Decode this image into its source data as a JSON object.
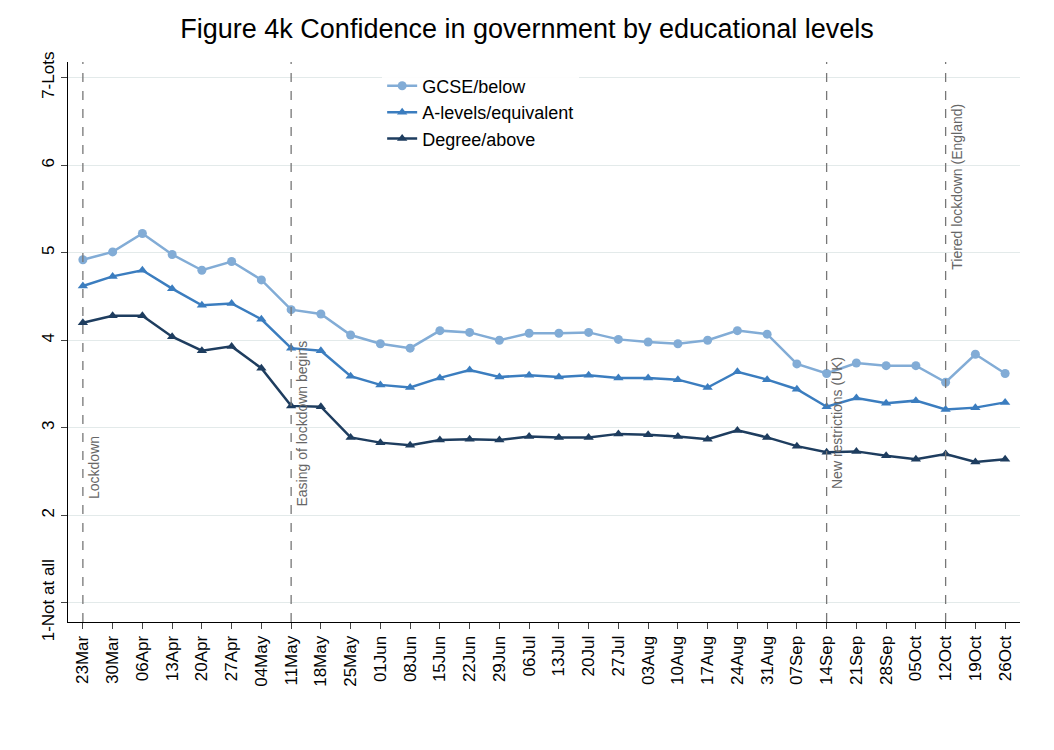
{
  "chart_data": {
    "type": "line",
    "title": "Figure 4k Confidence in government by educational levels",
    "categories": [
      "23Mar",
      "30Mar",
      "06Apr",
      "13Apr",
      "20Apr",
      "27Apr",
      "04May",
      "11May",
      "18May",
      "25May",
      "01Jun",
      "08Jun",
      "15Jun",
      "22Jun",
      "29Jun",
      "06Jul",
      "13Jul",
      "20Jul",
      "27Jul",
      "03Aug",
      "10Aug",
      "17Aug",
      "24Aug",
      "31Aug",
      "07Sep",
      "14Sep",
      "21Sep",
      "28Sep",
      "05Oct",
      "12Oct",
      "19Oct",
      "26Oct"
    ],
    "series": [
      {
        "name": "GCSE/below",
        "color": "#82acd6",
        "marker": "circle",
        "values": [
          4.92,
          5.01,
          5.22,
          4.98,
          4.8,
          4.9,
          4.69,
          4.35,
          4.3,
          4.06,
          3.96,
          3.91,
          4.11,
          4.09,
          4.0,
          4.08,
          4.08,
          4.09,
          4.01,
          3.98,
          3.96,
          4.0,
          4.11,
          4.07,
          3.73,
          3.62,
          3.74,
          3.71,
          3.71,
          3.52,
          3.84,
          3.62
        ]
      },
      {
        "name": "A-levels/equivalent",
        "color": "#3b7dbf",
        "marker": "triangle-up",
        "values": [
          4.62,
          4.73,
          4.8,
          4.59,
          4.4,
          4.42,
          4.24,
          3.91,
          3.88,
          3.59,
          3.49,
          3.46,
          3.57,
          3.66,
          3.58,
          3.6,
          3.58,
          3.6,
          3.57,
          3.57,
          3.55,
          3.46,
          3.64,
          3.55,
          3.44,
          3.24,
          3.34,
          3.28,
          3.31,
          3.21,
          3.23,
          3.29
        ]
      },
      {
        "name": "Degree/above",
        "color": "#1e3d5f",
        "marker": "triangle-up",
        "values": [
          4.2,
          4.28,
          4.28,
          4.04,
          3.88,
          3.93,
          3.68,
          3.25,
          3.24,
          2.89,
          2.83,
          2.8,
          2.86,
          2.87,
          2.86,
          2.9,
          2.89,
          2.89,
          2.93,
          2.92,
          2.9,
          2.87,
          2.97,
          2.89,
          2.79,
          2.72,
          2.73,
          2.68,
          2.64,
          2.7,
          2.61,
          2.64
        ]
      }
    ],
    "ylim": [
      0.78,
      7.18
    ],
    "yticks": [
      {
        "value": 1,
        "label": "1-Not at all"
      },
      2,
      3,
      4,
      5,
      6,
      {
        "value": 7,
        "label": "7-Lots"
      }
    ],
    "grid": true,
    "legend": "top",
    "annotations": [
      {
        "x": "23Mar",
        "text": "Lockdown",
        "line_style": "dash"
      },
      {
        "x": "11May",
        "text": "Easing of lockdown begins",
        "line_style": "dash"
      },
      {
        "x": "14Sep",
        "text": "New restrictions (UK)",
        "line_style": "dash"
      },
      {
        "x": "12Oct",
        "text": "Tiered lockdown (England)",
        "line_style": "dash"
      }
    ]
  }
}
